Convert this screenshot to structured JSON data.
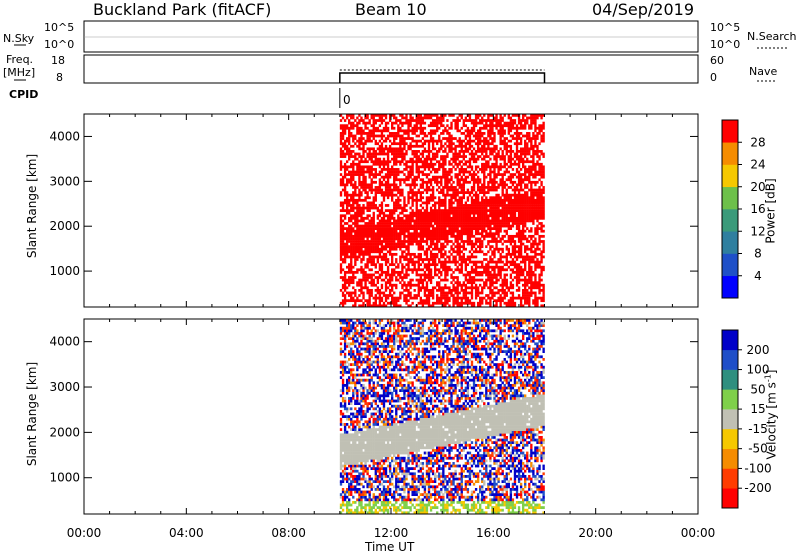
{
  "header": {
    "station": "Buckland Park (fitACF)",
    "beam": "Beam 10",
    "date": "04/Sep/2019"
  },
  "noise_panel": {
    "left_label": "N.Sky",
    "left_ticks": [
      "10^5",
      "10^0"
    ],
    "right_ticks": [
      "10^5",
      "10^0"
    ],
    "right_label": "N.Search"
  },
  "freq_panel": {
    "left_label_1": "Freq.",
    "left_label_2": "[MHz]",
    "left_ticks": [
      "18",
      "8"
    ],
    "right_ticks": [
      "60",
      "0"
    ],
    "right_label": "Nave"
  },
  "cpid": {
    "label": "CPID",
    "value": "0"
  },
  "chart_data": [
    {
      "type": "heatmap",
      "name": "power",
      "ylabel": "Slant Range [km]",
      "yticks": [
        1000,
        2000,
        3000,
        4000
      ],
      "ylim": [
        200,
        4500
      ],
      "xlim": [
        0,
        24
      ],
      "xticks": [
        "00:00",
        "04:00",
        "08:00",
        "12:00",
        "16:00",
        "20:00",
        "00:00"
      ],
      "xlabel": "Time UT",
      "data_window_hours": [
        10.0,
        18.0
      ],
      "colorbar": {
        "label": "Power [dB]",
        "ticks": [
          "4",
          "8",
          "12",
          "16",
          "20",
          "24",
          "28"
        ],
        "colors": [
          "#0000ff",
          "#1f50c8",
          "#2f7f9f",
          "#3a9a7a",
          "#6dc04a",
          "#f5c800",
          "#f58c00",
          "#ff0000"
        ]
      },
      "description_level_dominant_db": 28
    },
    {
      "type": "heatmap",
      "name": "velocity",
      "ylabel": "Slant Range [km]",
      "yticks": [
        1000,
        2000,
        3000,
        4000
      ],
      "ylim": [
        200,
        4500
      ],
      "xlim": [
        0,
        24
      ],
      "xticks": [
        "00:00",
        "04:00",
        "08:00",
        "12:00",
        "16:00",
        "20:00",
        "00:00"
      ],
      "xlabel": "Time UT",
      "data_window_hours": [
        10.0,
        18.0
      ],
      "colorbar": {
        "label": "Velocity [m s^-1]",
        "ticks": [
          "200",
          "100",
          "50",
          "15",
          "-15",
          "-50",
          "-100",
          "-200"
        ],
        "colors": [
          "#0000c8",
          "#1f4fc8",
          "#2f8f7f",
          "#7fd04a",
          "#c0c0b4",
          "#f5c800",
          "#f58c00",
          "#ff3c00",
          "#ff0000"
        ]
      }
    }
  ]
}
